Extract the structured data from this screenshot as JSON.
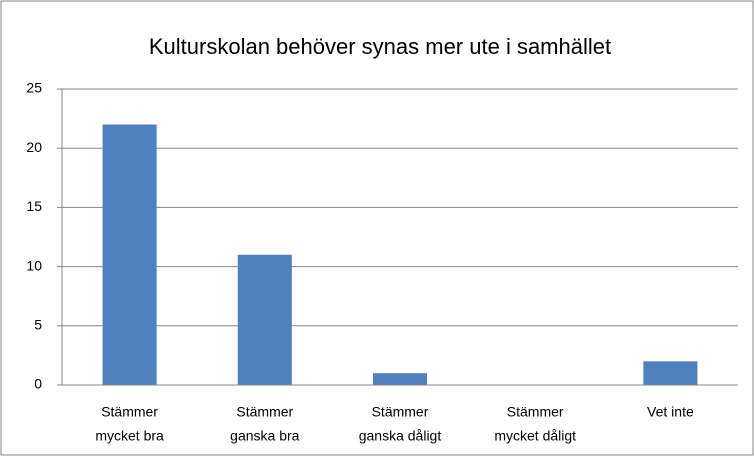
{
  "chart_data": {
    "type": "bar",
    "title": "Kulturskolan behöver synas mer ute i samhället",
    "categories": [
      [
        "Stämmer",
        "mycket bra"
      ],
      [
        "Stämmer",
        "ganska bra"
      ],
      [
        "Stämmer",
        "ganska dåligt"
      ],
      [
        "Stämmer",
        "mycket dåligt"
      ],
      [
        "Vet inte"
      ]
    ],
    "values": [
      22,
      11,
      1,
      0,
      2
    ],
    "color": "#4f81bd",
    "ylim": [
      0,
      25
    ],
    "yticks": [
      0,
      5,
      10,
      15,
      20,
      25
    ],
    "grid": true
  }
}
